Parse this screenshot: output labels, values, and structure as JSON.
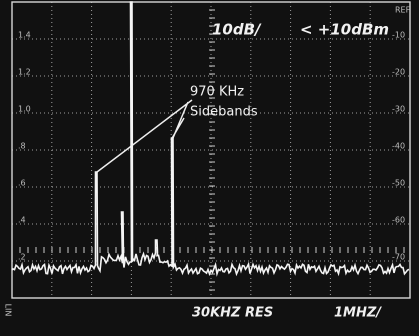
{
  "header": {
    "scale": "10dB/",
    "reference": "< +10dBm"
  },
  "annotation": {
    "line1": "970 KHz",
    "line2": "Sidebands"
  },
  "left_scale": [
    "1.4",
    "1.2",
    "1.0",
    ".8",
    ".6",
    ".4",
    ".2"
  ],
  "right_scale": {
    "title": "REF",
    "labels": [
      "-10",
      "-20",
      "-30",
      "-40",
      "-50",
      "-60",
      "-70"
    ]
  },
  "footer": {
    "resolution": "30KHZ RES",
    "span": "1MHZ/",
    "mode": "LIN"
  }
}
